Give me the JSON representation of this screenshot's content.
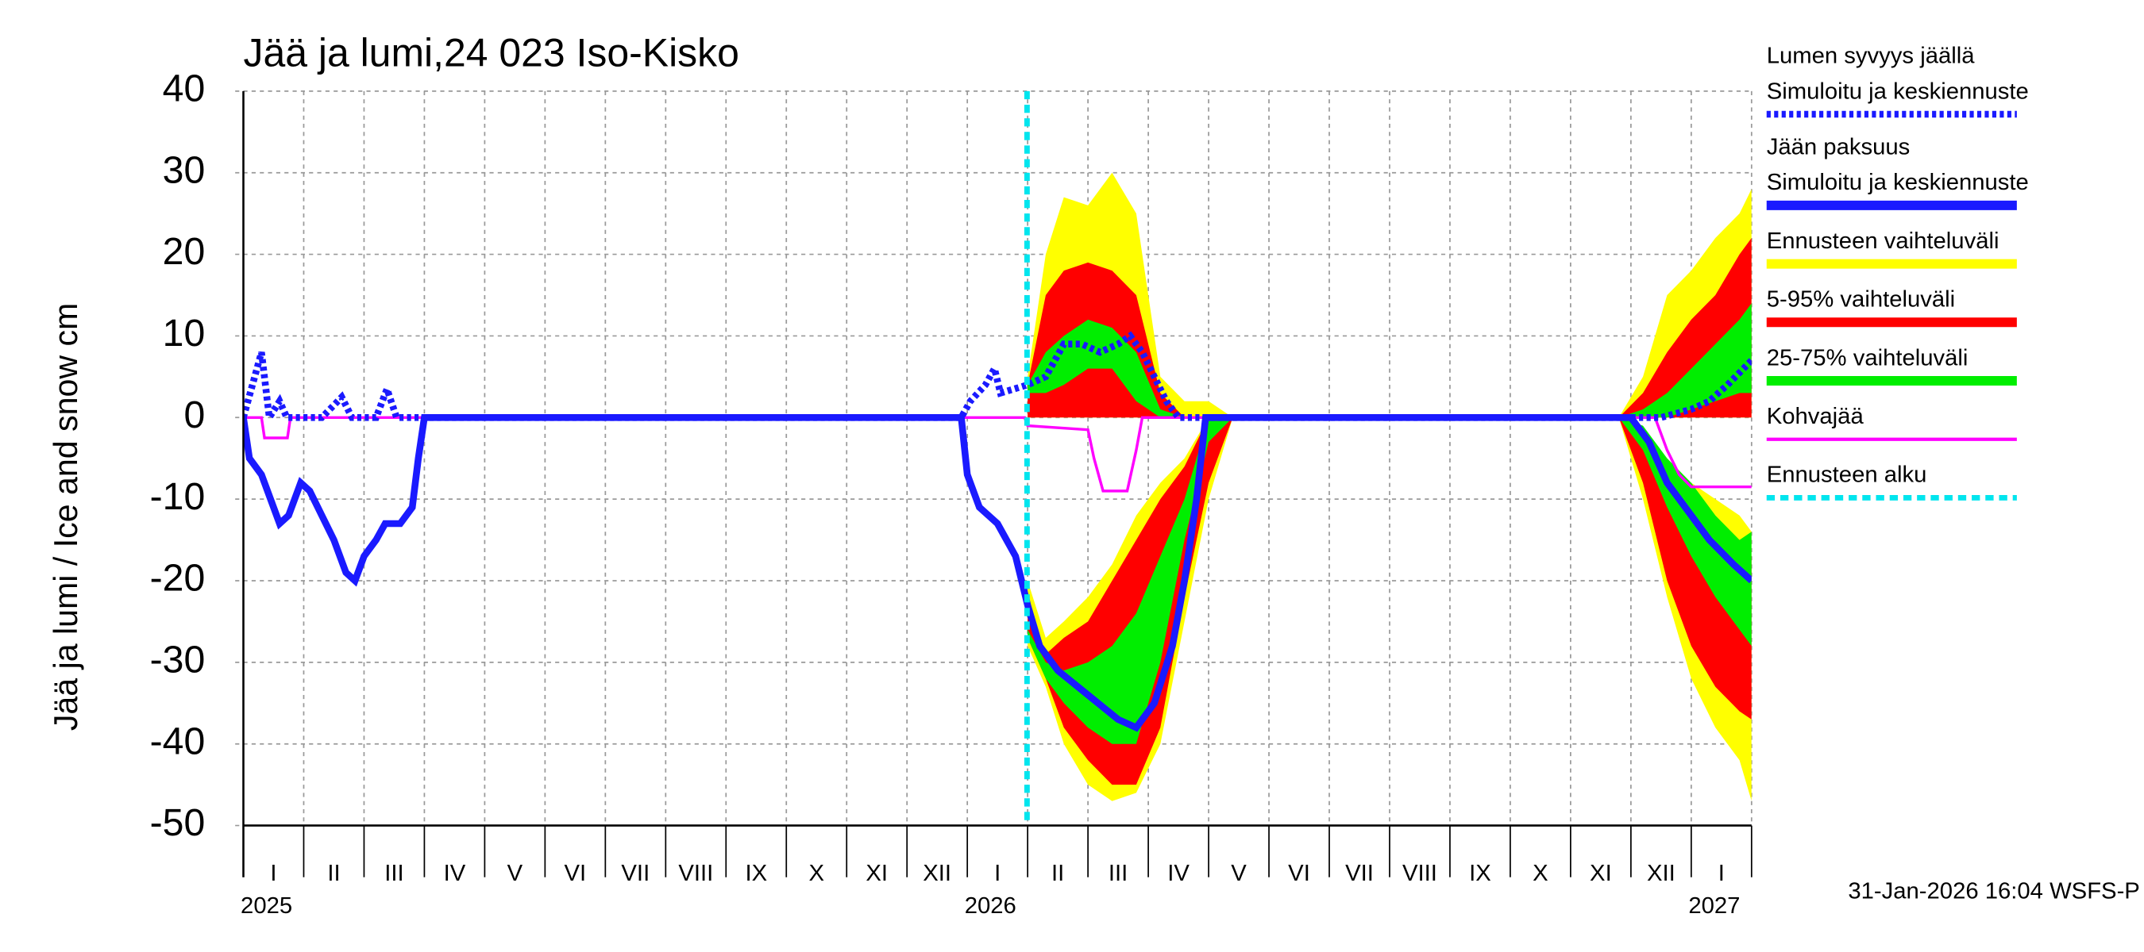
{
  "chart_data": {
    "type": "line",
    "title": "Jää ja lumi,24 023 Iso-Kisko",
    "y_label": "Jää ja lumi / Ice and snow    cm",
    "footer": "31-Jan-2026 16:04 WSFS-P",
    "xlim": [
      0,
      25
    ],
    "ylim": [
      -50,
      40
    ],
    "yticks": [
      -50,
      -40,
      -30,
      -20,
      -10,
      0,
      10,
      20,
      30,
      40
    ],
    "xticks": [
      0,
      1,
      2,
      3,
      4,
      5,
      6,
      7,
      8,
      9,
      10,
      11,
      12,
      13,
      14,
      15,
      16,
      17,
      18,
      19,
      20,
      21,
      22,
      23,
      24,
      25
    ],
    "grid": true,
    "categories": [
      "I",
      "II",
      "III",
      "IV",
      "V",
      "VI",
      "VII",
      "VIII",
      "IX",
      "X",
      "XI",
      "XII",
      "I",
      "II",
      "III",
      "IV",
      "V",
      "VI",
      "VII",
      "VIII",
      "IX",
      "X",
      "XI",
      "XII",
      "I"
    ],
    "year_labels": [
      {
        "value": 0,
        "label": "2025"
      },
      {
        "value": 12,
        "label": "2026"
      },
      {
        "value": 24,
        "label": "2027"
      }
    ],
    "forecast_start": {
      "name": "Ennusteen alku",
      "color": "#00e5ee",
      "value": 12.99
    },
    "bands": [
      {
        "name": "Ennusteen vaihteluväli",
        "color": "#ffff00",
        "segments": [
          {
            "x": [
              13.0,
              13.3,
              13.6,
              14.0,
              14.4,
              14.8,
              15.2,
              15.6,
              16.0,
              16.4
            ],
            "low": [
              0,
              0,
              0,
              0,
              0,
              0,
              0,
              0,
              0,
              0
            ],
            "high": [
              5,
              20,
              27,
              26,
              30,
              25,
              5,
              2,
              2,
              0
            ]
          },
          {
            "x": [
              13.0,
              13.3,
              13.6,
              14.0,
              14.4,
              14.8,
              15.2,
              15.6,
              16.0,
              16.4
            ],
            "low": [
              -28,
              -33,
              -40,
              -45,
              -47,
              -46,
              -40,
              -25,
              -10,
              0
            ],
            "high": [
              -20,
              -27,
              -25,
              -22,
              -18,
              -12,
              -8,
              -5,
              0,
              0
            ]
          },
          {
            "x": [
              22.8,
              23.2,
              23.6,
              24.0,
              24.4,
              24.8,
              25.0
            ],
            "low": [
              0,
              0,
              0,
              0,
              0,
              0,
              0
            ],
            "high": [
              0,
              5,
              15,
              18,
              22,
              25,
              28
            ]
          },
          {
            "x": [
              22.8,
              23.2,
              23.6,
              24.0,
              24.4,
              24.8,
              25.0
            ],
            "low": [
              0,
              -10,
              -22,
              -32,
              -38,
              -42,
              -47
            ],
            "high": [
              0,
              -2,
              -5,
              -8,
              -10,
              -12,
              -14
            ]
          }
        ]
      },
      {
        "name": "5-95% vaihteluväli",
        "color": "#ff0000",
        "segments": [
          {
            "x": [
              13.0,
              13.3,
              13.6,
              14.0,
              14.4,
              14.8,
              15.2,
              15.6,
              16.0,
              16.4
            ],
            "low": [
              0,
              0,
              0,
              0,
              0,
              0,
              0,
              0,
              0,
              0
            ],
            "high": [
              4,
              15,
              18,
              19,
              18,
              15,
              3,
              0,
              0,
              0
            ]
          },
          {
            "x": [
              13.0,
              13.3,
              13.6,
              14.0,
              14.4,
              14.8,
              15.2,
              15.6,
              16.0,
              16.4
            ],
            "low": [
              -27,
              -32,
              -38,
              -42,
              -45,
              -45,
              -38,
              -22,
              -8,
              0
            ],
            "high": [
              -24,
              -29,
              -27,
              -25,
              -20,
              -15,
              -10,
              -6,
              0,
              0
            ]
          },
          {
            "x": [
              22.8,
              23.2,
              23.6,
              24.0,
              24.4,
              24.8,
              25.0
            ],
            "low": [
              0,
              0,
              0,
              0,
              0,
              0,
              0
            ],
            "high": [
              0,
              3,
              8,
              12,
              15,
              20,
              22
            ]
          },
          {
            "x": [
              22.8,
              23.2,
              23.6,
              24.0,
              24.4,
              24.8,
              25.0
            ],
            "low": [
              0,
              -8,
              -20,
              -28,
              -33,
              -36,
              -37
            ],
            "high": [
              0,
              -3,
              -7,
              -10,
              -13,
              -15,
              -17
            ]
          }
        ]
      },
      {
        "name": "25-75% vaihteluväli",
        "color": "#00ee00",
        "segments": [
          {
            "x": [
              13.0,
              13.3,
              13.6,
              14.0,
              14.4,
              14.8,
              15.2,
              15.6,
              16.0,
              16.4
            ],
            "low": [
              3,
              3,
              4,
              6,
              6,
              2,
              0,
              0,
              0,
              0
            ],
            "high": [
              4,
              8,
              10,
              12,
              11,
              8,
              1,
              0,
              0,
              0
            ]
          },
          {
            "x": [
              13.0,
              13.3,
              13.6,
              14.0,
              14.4,
              14.8,
              15.2,
              15.6,
              16.0,
              16.4
            ],
            "low": [
              -27,
              -32,
              -35,
              -38,
              -40,
              -40,
              -30,
              -15,
              -3,
              0
            ],
            "high": [
              -26,
              -30,
              -31,
              -30,
              -28,
              -24,
              -17,
              -10,
              0,
              0
            ]
          },
          {
            "x": [
              22.8,
              23.2,
              23.6,
              24.0,
              24.4,
              24.8,
              25.0
            ],
            "low": [
              0,
              0,
              0,
              1,
              2,
              3,
              3
            ],
            "high": [
              0,
              1,
              3,
              6,
              9,
              12,
              14
            ]
          },
          {
            "x": [
              22.8,
              23.2,
              23.6,
              24.0,
              24.4,
              24.8,
              25.0
            ],
            "low": [
              0,
              -4,
              -11,
              -17,
              -22,
              -26,
              -28
            ],
            "high": [
              0,
              -1,
              -5,
              -8,
              -12,
              -15,
              -14
            ]
          }
        ]
      }
    ],
    "series": [
      {
        "name": "Lumen syvyys jäällä",
        "description": "Simuloitu ja keskiennuste",
        "color": "#1a1aff",
        "style": "dotted",
        "x": [
          0,
          0.15,
          0.3,
          0.43,
          0.6,
          0.72,
          1.3,
          1.63,
          1.8,
          2.2,
          2.38,
          2.54,
          11.9,
          12.05,
          12.3,
          12.45,
          12.55,
          13.0,
          13.3,
          13.6,
          13.9,
          14.2,
          14.5,
          14.7,
          14.9,
          15.1,
          15.3,
          15.5,
          23.5,
          24.0,
          24.3,
          24.6,
          25.0
        ],
        "values": [
          0,
          4,
          8,
          0,
          2,
          0,
          0,
          2.5,
          0,
          0,
          3.5,
          0,
          0,
          2,
          4,
          6,
          3,
          4,
          5,
          9,
          9,
          8,
          9,
          10,
          8,
          5,
          2,
          0,
          0,
          1,
          2,
          4,
          7
        ]
      },
      {
        "name": "Jään paksuus",
        "description": "Simuloitu ja keskiennuste",
        "color": "#1a1aff",
        "style": "solid",
        "x": [
          0,
          0.1,
          0.3,
          0.45,
          0.6,
          0.75,
          0.95,
          1.1,
          1.3,
          1.5,
          1.7,
          1.85,
          2.0,
          2.2,
          2.35,
          2.6,
          2.8,
          2.9,
          3.0,
          11.9,
          12.0,
          12.2,
          12.5,
          12.8,
          13.0,
          13.2,
          13.5,
          14.0,
          14.5,
          14.8,
          15.1,
          15.4,
          15.6,
          15.8,
          15.95,
          23.0,
          23.3,
          23.6,
          24.0,
          24.3,
          24.7,
          25.0
        ],
        "values": [
          0,
          -5,
          -7,
          -10,
          -13,
          -12,
          -8,
          -9,
          -12,
          -15,
          -19,
          -20,
          -17,
          -15,
          -13,
          -13,
          -11,
          -5,
          0,
          0,
          -7,
          -11,
          -13,
          -17,
          -23,
          -28,
          -31,
          -34,
          -37,
          -38,
          -35,
          -28,
          -20,
          -10,
          0,
          0,
          -3,
          -8,
          -12,
          -15,
          -18,
          -20
        ]
      },
      {
        "name": "Kohvajää",
        "color": "#ff00ff",
        "style": "thin",
        "x": [
          0,
          0.3,
          0.35,
          0.73,
          0.78,
          12.95,
          13.0,
          14.0,
          14.1,
          14.25,
          14.65,
          14.8,
          14.9,
          23.4,
          23.6,
          23.8,
          24.0,
          25.0
        ],
        "values": [
          0,
          0,
          -2.5,
          -2.5,
          0,
          0,
          -1,
          -1.5,
          -5,
          -9,
          -9,
          -4,
          0,
          0,
          -4,
          -7,
          -8.5,
          -8.5
        ]
      }
    ]
  }
}
